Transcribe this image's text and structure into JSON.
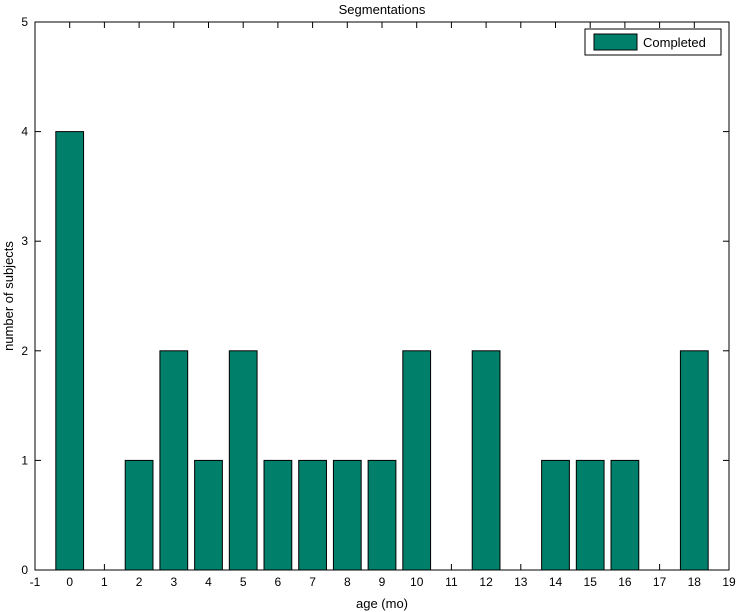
{
  "chart_data": {
    "type": "bar",
    "title": "Segmentations",
    "xlabel": "age (mo)",
    "ylabel": "number of subjects",
    "xlim": [
      -1,
      19
    ],
    "ylim": [
      0,
      5
    ],
    "xticks": [
      "-1",
      "0",
      "1",
      "2",
      "3",
      "4",
      "5",
      "6",
      "7",
      "8",
      "9",
      "10",
      "11",
      "12",
      "13",
      "14",
      "15",
      "16",
      "17",
      "18",
      "19"
    ],
    "yticks": [
      "0",
      "1",
      "2",
      "3",
      "4",
      "5"
    ],
    "legend": {
      "position": "top-right",
      "entries": [
        "Completed"
      ]
    },
    "colors": {
      "bar": "#007f6a",
      "bar_stroke": "#000000"
    },
    "series": [
      {
        "name": "Completed",
        "x": [
          0,
          2,
          3,
          4,
          5,
          6,
          7,
          8,
          9,
          10,
          12,
          14,
          15,
          16,
          18
        ],
        "values": [
          4,
          1,
          2,
          1,
          2,
          1,
          1,
          1,
          1,
          2,
          2,
          1,
          1,
          1,
          2
        ]
      }
    ]
  }
}
